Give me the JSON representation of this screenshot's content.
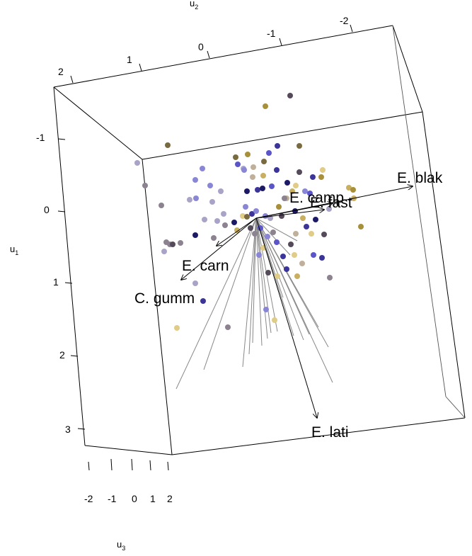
{
  "chart_data": {
    "type": "scatter",
    "title": "",
    "axes": {
      "u1": {
        "title": "u1",
        "ticks": [
          "-1",
          "0",
          "1",
          "2",
          "3"
        ]
      },
      "u2": {
        "title": "u2",
        "ticks": [
          "2",
          "1",
          "0",
          "-1",
          "-2"
        ]
      },
      "u3": {
        "title": "u3",
        "ticks": [
          "-2",
          "-1",
          "0",
          "1",
          "2"
        ]
      }
    },
    "biplot_arrows": [
      {
        "label": "E. blak"
      },
      {
        "label": "E. camp"
      },
      {
        "label": "E. fast"
      },
      {
        "label": "E. carn"
      },
      {
        "label": "C. gumm"
      },
      {
        "label": "E. lati"
      }
    ],
    "grey_rays_count": 18,
    "point_colors": [
      "#1c1a66",
      "#3b3499",
      "#5a55c8",
      "#8a86d6",
      "#a9a3c8",
      "#8c8290",
      "#544a5a",
      "#7a6a40",
      "#a8903a",
      "#c8b060",
      "#e0cc86",
      "#c0b09a"
    ],
    "points_count": 100
  }
}
